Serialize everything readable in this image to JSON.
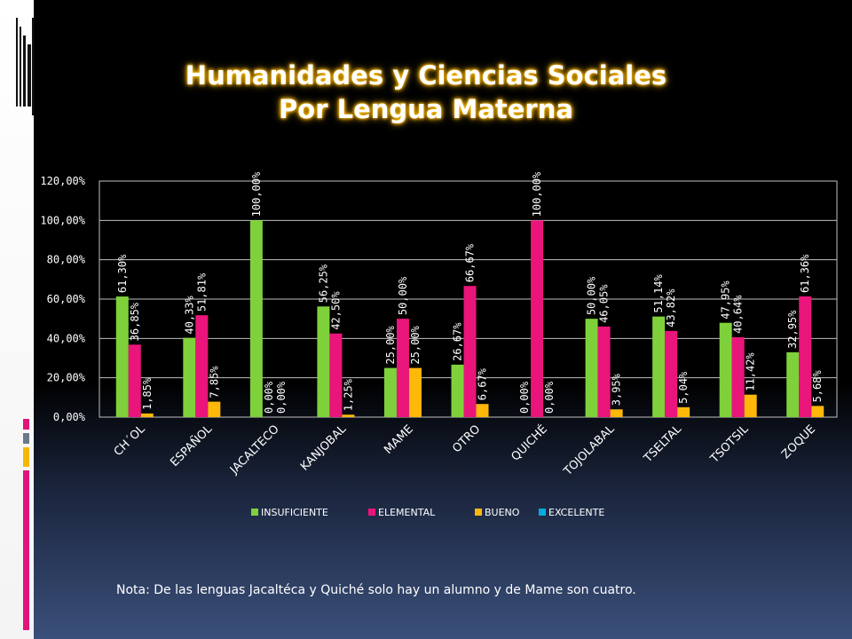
{
  "title": {
    "line1": "Humanidades y Ciencias Sociales",
    "line2": "Por Lengua Materna"
  },
  "note": "Nota: De las lenguas Jacaltéca y Quiché solo hay un alumno y de Mame son cuatro.",
  "colors": {
    "background": "#000000",
    "insuficiente": "#7fd13b",
    "elemental": "#ea157a",
    "bueno": "#feb80a",
    "excelente": "#00addc",
    "accent_pink": "#e0157a",
    "accent_yellow": "#f5b800"
  },
  "chart_data": {
    "type": "bar",
    "title": "",
    "xlabel": "",
    "ylabel": "",
    "ylim": [
      0,
      120
    ],
    "yticks": [
      0,
      20,
      40,
      60,
      80,
      100,
      120
    ],
    "ytick_labels": [
      "0,00%",
      "20,00%",
      "40,00%",
      "60,00%",
      "80,00%",
      "100,00%",
      "120,00%"
    ],
    "grid": true,
    "legend_position": "bottom",
    "categories": [
      "CH´OL",
      "ESPAÑOL",
      "JACALTECO",
      "KANJOBAL",
      "MAME",
      "OTRO",
      "QUICHÉ",
      "TOJOLABAL",
      "TSELTAL",
      "TSOTSIL",
      "ZOQUE"
    ],
    "series": [
      {
        "name": "INSUFICIENTE",
        "color": "#7fd13b",
        "values": [
          61.3,
          40.33,
          100.0,
          56.25,
          25.0,
          26.67,
          0.0,
          50.0,
          51.14,
          47.95,
          32.95
        ],
        "labels": [
          "61,30%",
          "40,33%",
          "100,00%",
          "56,25%",
          "25,00%",
          "26,67%",
          "0,00%",
          "50,00%",
          "51,14%",
          "47,95%",
          "32,95%"
        ]
      },
      {
        "name": "ELEMENTAL",
        "color": "#ea157a",
        "values": [
          36.85,
          51.81,
          0.0,
          42.5,
          50.0,
          66.67,
          100.0,
          46.05,
          43.82,
          40.64,
          61.36
        ],
        "labels": [
          "36,85%",
          "51,81%",
          "0,00%",
          "42,50%",
          "50,00%",
          "66,67%",
          "100,00%",
          "46,05%",
          "43,82%",
          "40,64%",
          "61,36%"
        ]
      },
      {
        "name": "BUENO",
        "color": "#feb80a",
        "values": [
          1.85,
          7.85,
          0.0,
          1.25,
          25.0,
          6.67,
          0.0,
          3.95,
          5.04,
          11.42,
          5.68
        ],
        "labels": [
          "1,85%",
          "7,85%",
          "0,00%",
          "1,25%",
          "25,00%",
          "6,67%",
          "0,00%",
          "3,95%",
          "5,04%",
          "11,42%",
          "5,68%"
        ]
      },
      {
        "name": "EXCELENTE",
        "color": "#00addc",
        "values": [
          0,
          0,
          0,
          0,
          0,
          0,
          0,
          0,
          0,
          0,
          0
        ],
        "labels": []
      }
    ]
  }
}
